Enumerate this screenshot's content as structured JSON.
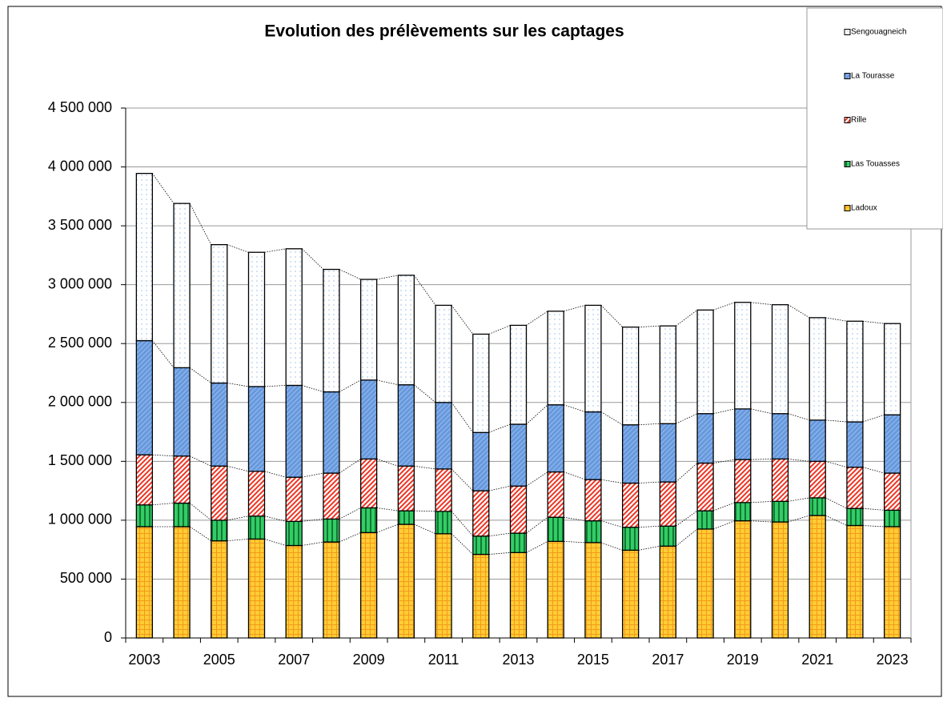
{
  "chart_data": {
    "type": "bar",
    "stacked": true,
    "title": "Evolution des prélèvements sur les captages",
    "categories": [
      "2003",
      null,
      "2005",
      null,
      "2007",
      null,
      "2009",
      null,
      "2011",
      null,
      "2013",
      null,
      "2015",
      null,
      "2017",
      null,
      "2019",
      null,
      "2021",
      null,
      "2023"
    ],
    "series": [
      {
        "name": "Ladoux",
        "color": "#ffcc33",
        "values": [
          945000,
          945000,
          825000,
          840000,
          785000,
          815000,
          895000,
          965000,
          885000,
          710000,
          725000,
          820000,
          810000,
          745000,
          780000,
          925000,
          995000,
          985000,
          1040000,
          955000,
          945000
        ]
      },
      {
        "name": "Las Touasses",
        "color": "#33cc66",
        "values": [
          185000,
          200000,
          175000,
          195000,
          205000,
          195000,
          210000,
          115000,
          190000,
          155000,
          165000,
          205000,
          185000,
          195000,
          170000,
          155000,
          155000,
          175000,
          150000,
          145000,
          140000
        ]
      },
      {
        "name": "Rille",
        "color": "#ee3322",
        "values": [
          425000,
          400000,
          460000,
          380000,
          375000,
          390000,
          415000,
          380000,
          360000,
          385000,
          400000,
          385000,
          350000,
          375000,
          375000,
          405000,
          365000,
          360000,
          310000,
          350000,
          315000
        ]
      },
      {
        "name": "La Tourasse",
        "color": "#6699dd",
        "values": [
          970000,
          750000,
          705000,
          720000,
          780000,
          690000,
          670000,
          690000,
          565000,
          495000,
          525000,
          570000,
          575000,
          495000,
          495000,
          420000,
          430000,
          385000,
          350000,
          385000,
          495000
        ]
      },
      {
        "name": "Sengouagneich",
        "color": "#ffffff",
        "values": [
          1420000,
          1395000,
          1175000,
          1140000,
          1160000,
          1040000,
          855000,
          930000,
          825000,
          835000,
          840000,
          795000,
          905000,
          830000,
          830000,
          880000,
          905000,
          925000,
          870000,
          855000,
          775000
        ]
      }
    ],
    "ylim": [
      0,
      4500000
    ],
    "yticks": [
      0,
      {
        "value": 500000,
        "label": "500 000"
      },
      {
        "value": 1000000,
        "label": "1 000 000"
      },
      {
        "value": 1500000,
        "label": "1 500 000"
      },
      {
        "value": 2000000,
        "label": "2 000 000"
      },
      {
        "value": 2500000,
        "label": "2 500 000"
      },
      {
        "value": 3000000,
        "label": "3 000 000"
      },
      {
        "value": 3500000,
        "label": "3 500 000"
      },
      {
        "value": 4000000,
        "label": "4 000 000"
      },
      {
        "value": 4500000,
        "label": "4 500 000"
      }
    ],
    "grid": true,
    "legend": "top-right"
  }
}
